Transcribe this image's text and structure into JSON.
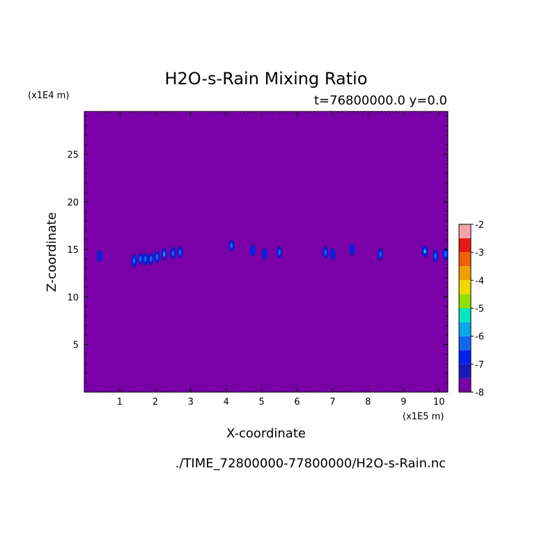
{
  "chart_data": {
    "type": "heatmap",
    "title": "H2O-s-Rain Mixing Ratio",
    "subtitle": "t=76800000.0 y=0.0",
    "xlabel": "X-coordinate",
    "ylabel": "Z-coordinate",
    "x_unit": "(x1E5 m)",
    "y_unit": "(x1E4 m)",
    "xlim": [
      0,
      10.25
    ],
    "ylim": [
      0,
      2.95
    ],
    "x_ticks": [
      1,
      2,
      3,
      4,
      5,
      6,
      7,
      8,
      9,
      10
    ],
    "y_ticks": [
      5,
      10,
      15,
      20,
      25
    ],
    "y_tick_values": [
      0.5,
      1.0,
      1.5,
      2.0,
      2.5
    ],
    "background_level": -8,
    "colorbar": {
      "levels": [
        -8,
        -7.5,
        -7,
        -6.5,
        -6,
        -5.5,
        -5,
        -4.5,
        -4,
        -3.5,
        -3,
        -2.5,
        -2
      ],
      "tick_labels": [
        "-2",
        "-3",
        "-4",
        "-5",
        "-6",
        "-7",
        "-8"
      ],
      "colors": [
        "#7a00a8",
        "#1a1ab4",
        "#0022ee",
        "#1466f0",
        "#0aa7ee",
        "#00e5c0",
        "#8ee000",
        "#f0d800",
        "#f0a000",
        "#f06000",
        "#e81818",
        "#f5a3a8"
      ]
    },
    "features": [
      {
        "x": 0.43,
        "z": 1.43,
        "level": -7
      },
      {
        "x": 1.4,
        "z": 1.38,
        "level": -6.5
      },
      {
        "x": 1.58,
        "z": 1.4,
        "level": -6.5
      },
      {
        "x": 1.72,
        "z": 1.4,
        "level": -6.5
      },
      {
        "x": 1.88,
        "z": 1.4,
        "level": -6.5
      },
      {
        "x": 2.05,
        "z": 1.42,
        "level": -6.5
      },
      {
        "x": 2.25,
        "z": 1.45,
        "level": -6
      },
      {
        "x": 2.5,
        "z": 1.46,
        "level": -6.5
      },
      {
        "x": 2.7,
        "z": 1.47,
        "level": -6.5
      },
      {
        "x": 4.15,
        "z": 1.54,
        "level": -6.5
      },
      {
        "x": 4.75,
        "z": 1.49,
        "level": -7
      },
      {
        "x": 5.08,
        "z": 1.45,
        "level": -7
      },
      {
        "x": 5.5,
        "z": 1.47,
        "level": -6.5
      },
      {
        "x": 6.8,
        "z": 1.47,
        "level": -6.5
      },
      {
        "x": 7.0,
        "z": 1.45,
        "level": -7
      },
      {
        "x": 7.55,
        "z": 1.5,
        "level": -7
      },
      {
        "x": 8.35,
        "z": 1.45,
        "level": -6.5
      },
      {
        "x": 9.6,
        "z": 1.48,
        "level": -5.5
      },
      {
        "x": 9.9,
        "z": 1.43,
        "level": -6.5
      },
      {
        "x": 10.18,
        "z": 1.45,
        "level": -6.5
      }
    ],
    "source": "./TIME_72800000-77800000/H2O-s-Rain.nc"
  }
}
